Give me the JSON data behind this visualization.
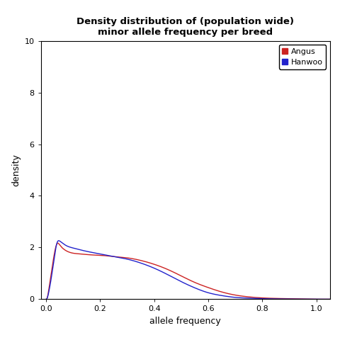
{
  "title_line1": "Density distribution of (population wide)",
  "title_line2": "minor allele frequency per breed",
  "xlabel": "allele frequency",
  "ylabel": "density",
  "xlim": [
    -0.02,
    1.05
  ],
  "ylim": [
    0,
    10
  ],
  "yticks": [
    0,
    2,
    4,
    6,
    8,
    10
  ],
  "xticks": [
    0.0,
    0.2,
    0.4,
    0.6,
    0.8,
    1.0
  ],
  "angus_color": "#cc2222",
  "hanwoo_color": "#2222cc",
  "legend_labels": [
    "Angus",
    "Hanwoo"
  ],
  "background_color": "#ffffff",
  "title_fontsize": 9.5,
  "axis_fontsize": 9,
  "tick_fontsize": 8,
  "angus_x": [
    0.0,
    0.005,
    0.01,
    0.02,
    0.03,
    0.04,
    0.05,
    0.07,
    0.1,
    0.13,
    0.16,
    0.2,
    0.25,
    0.3,
    0.35,
    0.4,
    0.45,
    0.5,
    0.55,
    0.6,
    0.65,
    0.7,
    0.75,
    0.8,
    0.85,
    0.9,
    0.95,
    1.0,
    1.05
  ],
  "angus_y": [
    0.0,
    0.1,
    0.4,
    1.1,
    1.75,
    2.15,
    2.1,
    1.9,
    1.78,
    1.75,
    1.72,
    1.7,
    1.65,
    1.6,
    1.5,
    1.35,
    1.15,
    0.9,
    0.65,
    0.45,
    0.28,
    0.16,
    0.09,
    0.05,
    0.03,
    0.02,
    0.01,
    0.0,
    -0.01
  ],
  "hanwoo_x": [
    0.0,
    0.005,
    0.01,
    0.02,
    0.03,
    0.04,
    0.05,
    0.07,
    0.1,
    0.13,
    0.16,
    0.2,
    0.25,
    0.3,
    0.35,
    0.4,
    0.45,
    0.5,
    0.55,
    0.6,
    0.65,
    0.7,
    0.75,
    0.8,
    0.85,
    0.9,
    0.95,
    1.0,
    1.05
  ],
  "hanwoo_y": [
    0.0,
    0.08,
    0.3,
    0.9,
    1.6,
    2.18,
    2.25,
    2.1,
    1.98,
    1.9,
    1.83,
    1.75,
    1.65,
    1.55,
    1.4,
    1.2,
    0.95,
    0.68,
    0.44,
    0.25,
    0.14,
    0.07,
    0.04,
    0.02,
    0.01,
    0.005,
    0.002,
    0.0,
    -0.005
  ]
}
